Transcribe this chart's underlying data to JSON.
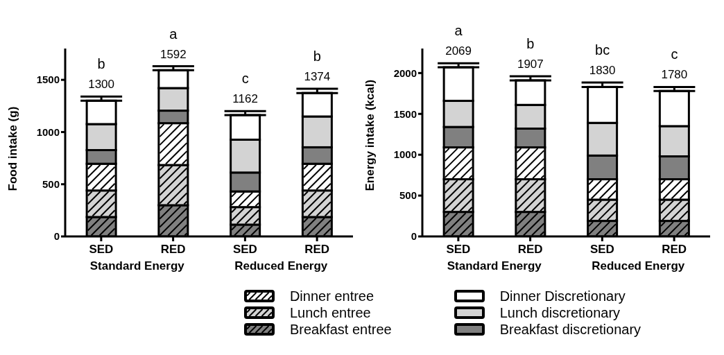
{
  "chart_data": [
    {
      "type": "bar",
      "stacked": true,
      "ylabel": "Food intake (g)",
      "categories": [
        "SED",
        "RED",
        "SED",
        "RED"
      ],
      "ylim": [
        0,
        1800
      ],
      "yticks": [
        0,
        500,
        1000,
        1500
      ],
      "legend": "bottom",
      "totals": [
        "1300",
        "1592",
        "1162",
        "1374"
      ],
      "annotations": [
        "b",
        "a",
        "c",
        "b",
        "Standard Energy",
        "Reduced Energy"
      ],
      "series": [
        {
          "name": "Breakfast entree",
          "color": "#808080",
          "values": [
            186,
            299,
            113,
            186
          ]
        },
        {
          "name": "Lunch entree",
          "color": "#d3d3d3",
          "values": [
            254,
            385,
            168,
            254
          ]
        },
        {
          "name": "Dinner entree",
          "color": "#ffffff",
          "values": [
            256,
            401,
            150,
            256
          ]
        },
        {
          "name": "Breakfast discretionary",
          "color": "#808080",
          "values": [
            131,
            120,
            181,
            158
          ]
        },
        {
          "name": "Lunch discretionary",
          "color": "#d3d3d3",
          "values": [
            249,
            216,
            315,
            295
          ]
        },
        {
          "name": "Dinner Discretionary",
          "color": "#ffffff",
          "values": [
            224,
            171,
            235,
            225
          ],
          "errors": [
            [
              1300,
              1340
            ],
            [
              1592,
              1630
            ],
            [
              1162,
              1200
            ],
            [
              1374,
              1415
            ]
          ]
        }
      ]
    },
    {
      "type": "bar",
      "stacked": true,
      "ylabel": "Energy intake (kcal)",
      "categories": [
        "SED",
        "RED",
        "SED",
        "RED"
      ],
      "ylim": [
        0,
        2300
      ],
      "yticks": [
        0,
        500,
        1000,
        1500,
        2000
      ],
      "totals": [
        "2069",
        "1907",
        "1830",
        "1780"
      ],
      "annotations": [
        "a",
        "b",
        "bc",
        "c",
        "Standard Energy",
        "Reduced Energy"
      ],
      "series": [
        {
          "color": "#808080",
          "values": [
            300,
            300,
            190,
            190
          ]
        },
        {
          "color": "#d3d3d3",
          "values": [
            400,
            400,
            260,
            260
          ]
        },
        {
          "color": "#ffffff",
          "values": [
            390,
            390,
            250,
            250
          ]
        },
        {
          "color": "#808080",
          "values": [
            250,
            230,
            290,
            280
          ]
        },
        {
          "color": "#d3d3d3",
          "values": [
            320,
            290,
            400,
            370
          ]
        },
        {
          "color": "#ffffff",
          "values": [
            410,
            300,
            440,
            430
          ],
          "errors": [
            [
              2070,
              2120
            ],
            [
              1910,
              1960
            ],
            [
              1830,
              1885
            ],
            [
              1780,
              1830
            ]
          ]
        }
      ]
    }
  ]
}
